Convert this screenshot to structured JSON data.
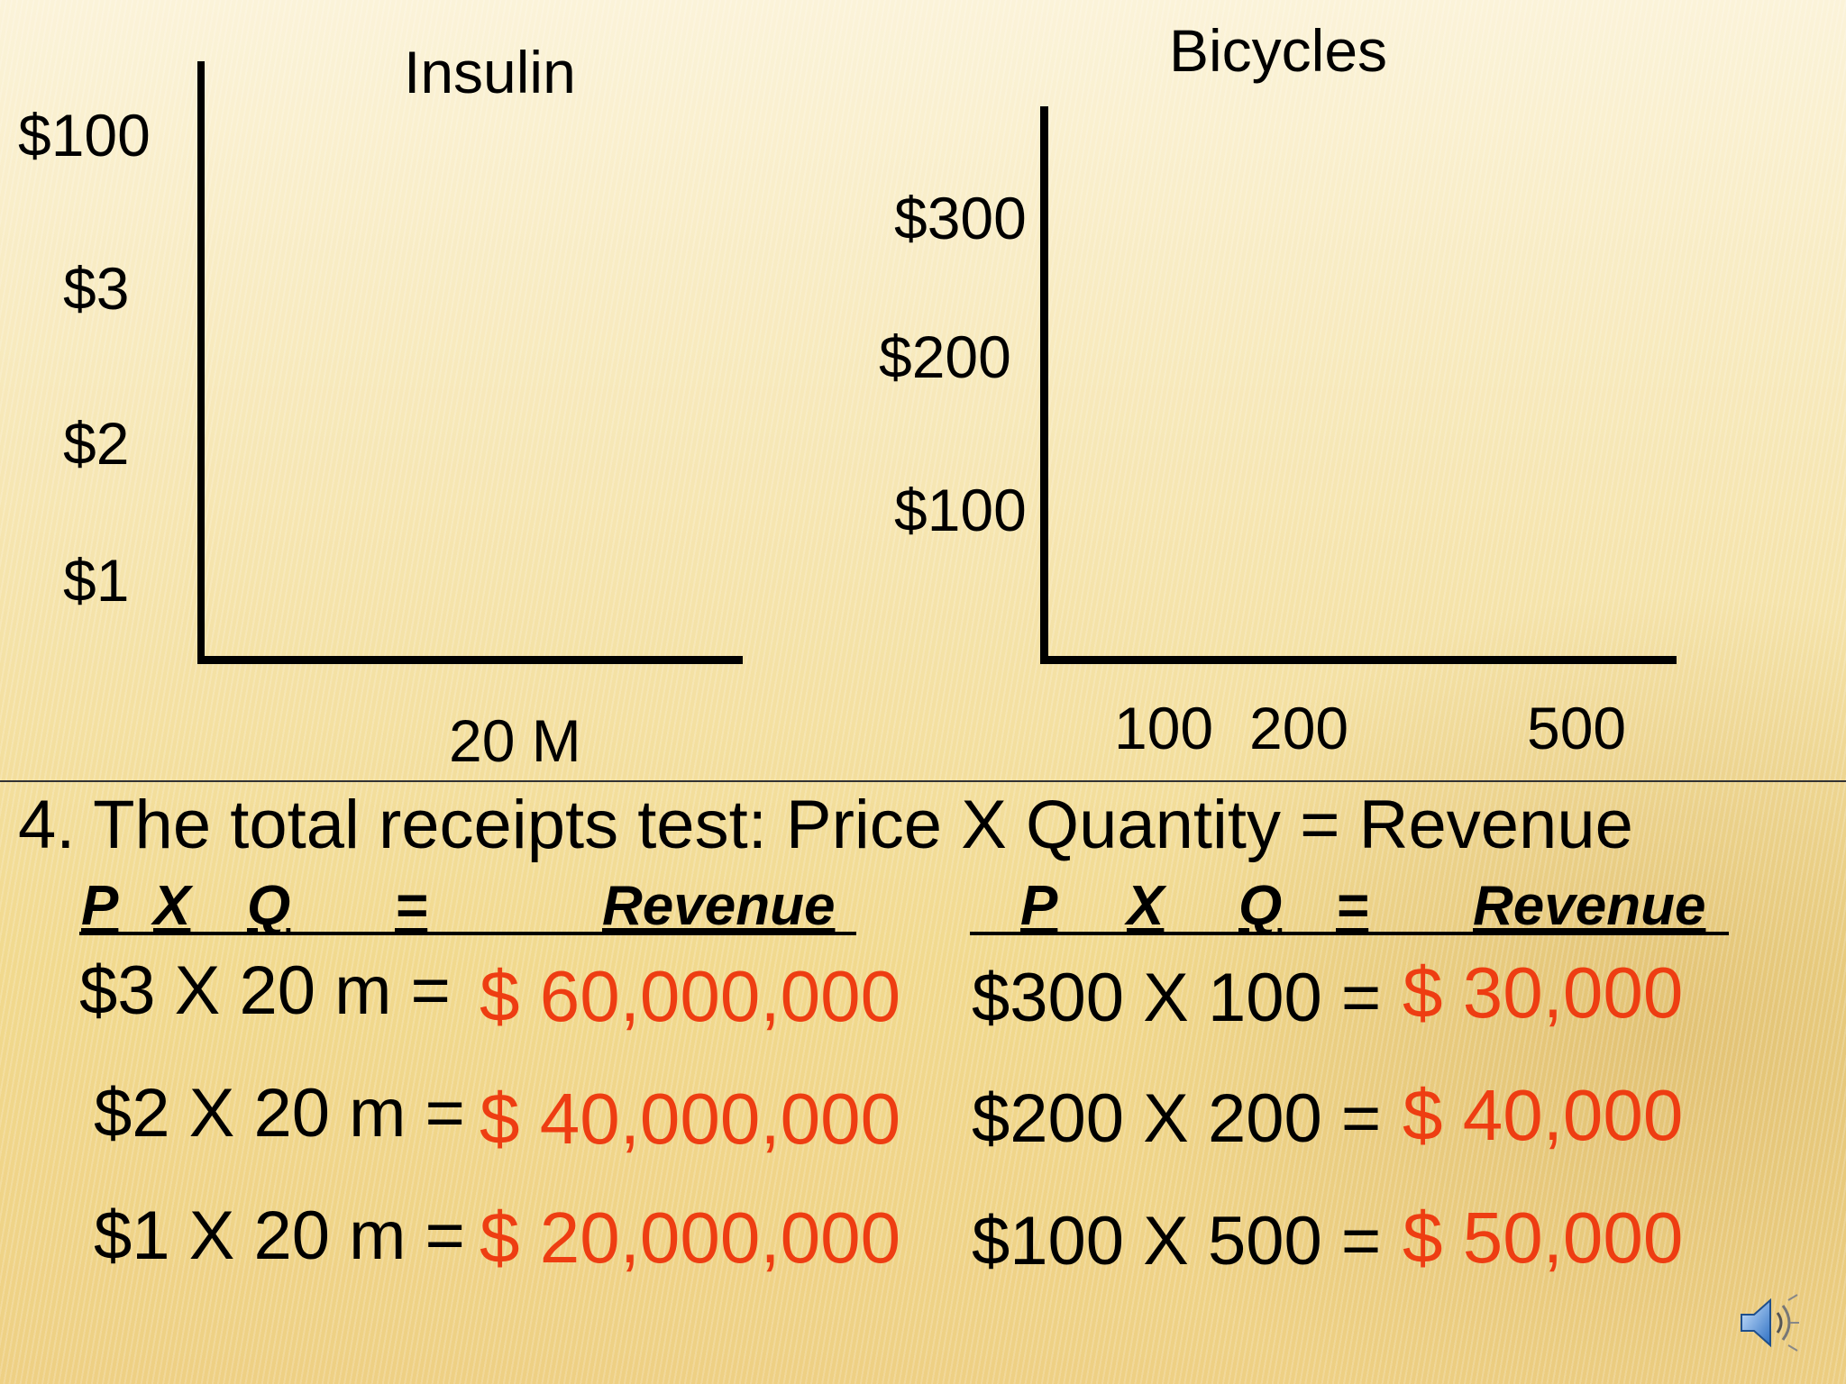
{
  "chart_data": [
    {
      "type": "line",
      "title": "Insulin",
      "xlabel": "",
      "ylabel": "",
      "y_tick_labels": [
        "$100",
        "$3",
        "$2",
        "$1"
      ],
      "x_tick_labels": [
        "20 M"
      ],
      "series": []
    },
    {
      "type": "line",
      "title": "Bicycles",
      "xlabel": "",
      "ylabel": "",
      "y_tick_labels": [
        "$300",
        "$200",
        "$100"
      ],
      "x_tick_labels": [
        "100",
        "200",
        "500"
      ],
      "series": []
    }
  ],
  "heading": "4. The total receipts test: Price X Quantity = Revenue",
  "left_table": {
    "header": {
      "p": "P",
      "x": "X",
      "q": "Q",
      "eq": "=",
      "revenue": "Revenue"
    },
    "rows": [
      {
        "lhs": "$3 X 20 m =",
        "rhs": "$ 60,000,000"
      },
      {
        "lhs": "$2 X 20 m =",
        "rhs": "$ 40,000,000"
      },
      {
        "lhs": "$1 X 20 m =",
        "rhs": "$ 20,000,000"
      }
    ]
  },
  "right_table": {
    "header": {
      "p": "P",
      "x": "X",
      "q": "Q",
      "eq": "=",
      "revenue": "Revenue"
    },
    "rows": [
      {
        "lhs": "$300 X 100 =",
        "rhs": "$ 30,000"
      },
      {
        "lhs": "$200 X 200 =",
        "rhs": "$ 40,000"
      },
      {
        "lhs": "$100 X 500 =",
        "rhs": "$ 50,000"
      }
    ]
  },
  "colors": {
    "revenue": "#ee3d12",
    "text": "#000000"
  },
  "icons": {
    "audio": "speaker-icon"
  }
}
